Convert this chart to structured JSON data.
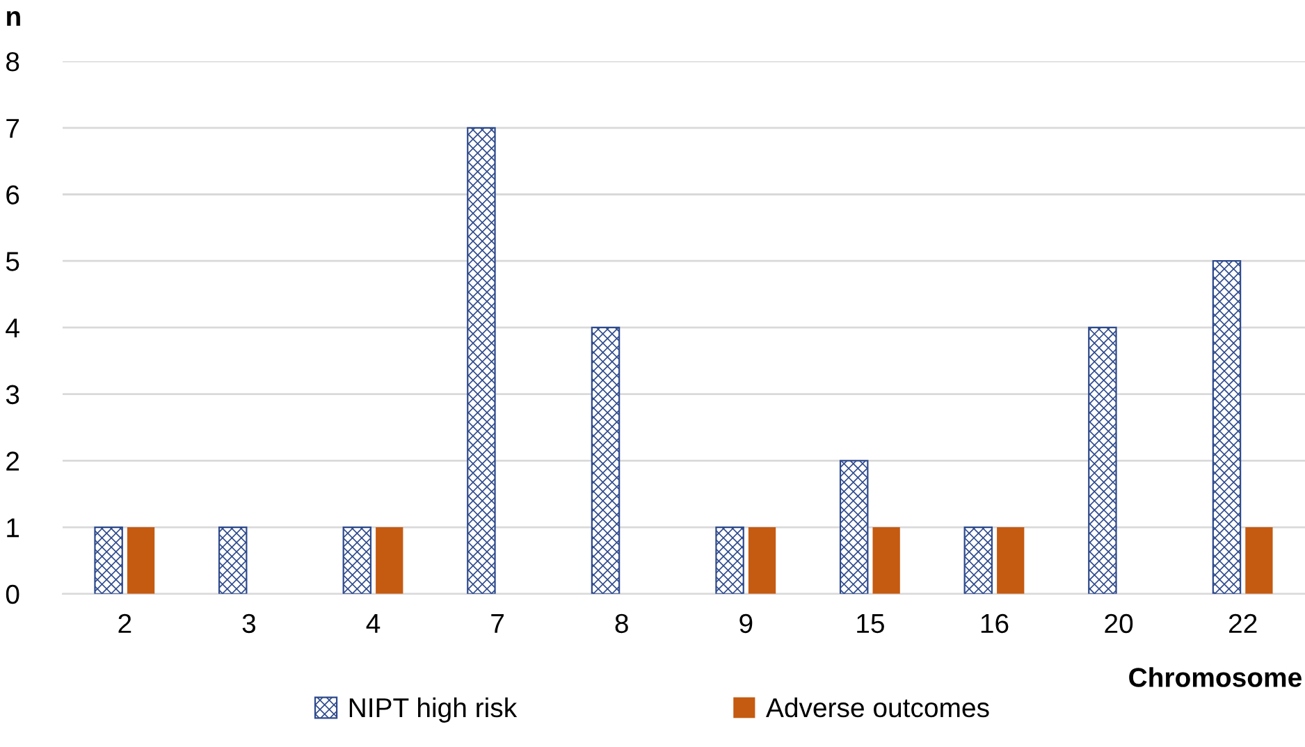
{
  "chart_data": {
    "type": "bar",
    "ylabel": "n",
    "xlabel": "Chromosome",
    "categories": [
      "2",
      "3",
      "4",
      "7",
      "8",
      "9",
      "15",
      "16",
      "20",
      "22"
    ],
    "series": [
      {
        "name": "NIPT high risk",
        "color": "#2e4a8c",
        "values": [
          1,
          1,
          1,
          7,
          4,
          1,
          2,
          1,
          4,
          5
        ]
      },
      {
        "name": "Adverse outcomes",
        "color": "#c55a11",
        "values": [
          1,
          0,
          1,
          0,
          0,
          1,
          1,
          1,
          0,
          1
        ]
      }
    ],
    "ylim": [
      0,
      8
    ],
    "yticks": [
      0,
      1,
      2,
      3,
      4,
      5,
      6,
      7,
      8
    ],
    "grid": "y",
    "legend": "bottom"
  }
}
